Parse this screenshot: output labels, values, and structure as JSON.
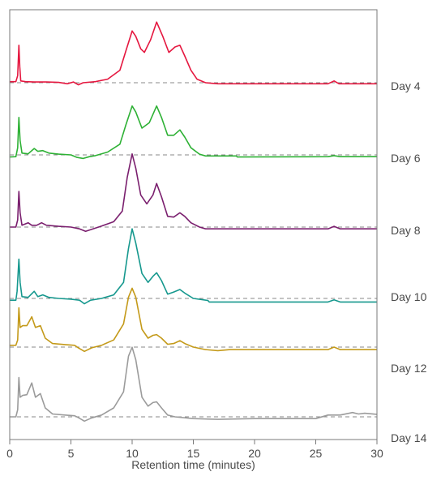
{
  "chart_data": {
    "type": "line",
    "title": "",
    "xlabel": "Retention time (minutes)",
    "ylabel": "",
    "xlim": [
      0,
      30
    ],
    "x_ticks": [
      0,
      5,
      10,
      15,
      20,
      25,
      30
    ],
    "x_tick_labels": [
      "0",
      "5",
      "10",
      "15",
      "20",
      "25",
      "30"
    ],
    "grid": false,
    "legend": "right (label beside each trace)",
    "baseline_reference": "dashed grey line per trace",
    "series": [
      {
        "name": "Day 4",
        "color": "#e5173f",
        "points": [
          [
            0,
            0.03
          ],
          [
            0.5,
            0.03
          ],
          [
            0.65,
            0.2
          ],
          [
            0.75,
            1.05
          ],
          [
            0.82,
            0.45
          ],
          [
            0.9,
            0.05
          ],
          [
            1.3,
            0.03
          ],
          [
            2,
            0.02
          ],
          [
            3,
            0.02
          ],
          [
            4,
            0.01
          ],
          [
            4.7,
            -0.03
          ],
          [
            5.2,
            0.02
          ],
          [
            5.6,
            -0.06
          ],
          [
            6,
            0.0
          ],
          [
            7,
            0.03
          ],
          [
            8,
            0.1
          ],
          [
            9,
            0.35
          ],
          [
            9.5,
            0.9
          ],
          [
            10,
            1.45
          ],
          [
            10.3,
            1.3
          ],
          [
            10.7,
            0.95
          ],
          [
            11,
            0.85
          ],
          [
            11.5,
            1.2
          ],
          [
            12,
            1.7
          ],
          [
            12.5,
            1.3
          ],
          [
            13,
            0.85
          ],
          [
            13.5,
            1.0
          ],
          [
            13.9,
            1.05
          ],
          [
            14.3,
            0.75
          ],
          [
            14.8,
            0.35
          ],
          [
            15.3,
            0.1
          ],
          [
            16,
            0.0
          ],
          [
            17,
            -0.03
          ],
          [
            20,
            -0.03
          ],
          [
            26,
            -0.03
          ],
          [
            26.5,
            0.05
          ],
          [
            26.9,
            -0.03
          ],
          [
            30,
            -0.03
          ]
        ]
      },
      {
        "name": "Day 6",
        "color": "#2eb135",
        "points": [
          [
            0,
            -0.06
          ],
          [
            0.5,
            -0.05
          ],
          [
            0.65,
            0.2
          ],
          [
            0.75,
            1.05
          ],
          [
            0.85,
            0.4
          ],
          [
            1,
            0.05
          ],
          [
            1.5,
            0.03
          ],
          [
            2,
            0.18
          ],
          [
            2.3,
            0.1
          ],
          [
            2.7,
            0.12
          ],
          [
            3.2,
            0.05
          ],
          [
            4,
            0.02
          ],
          [
            5,
            0.0
          ],
          [
            5.5,
            -0.07
          ],
          [
            6,
            -0.1
          ],
          [
            6.5,
            -0.05
          ],
          [
            7,
            -0.02
          ],
          [
            8,
            0.08
          ],
          [
            9,
            0.3
          ],
          [
            9.5,
            0.85
          ],
          [
            10,
            1.37
          ],
          [
            10.3,
            1.2
          ],
          [
            10.8,
            0.75
          ],
          [
            11.4,
            0.9
          ],
          [
            12,
            1.37
          ],
          [
            12.4,
            1.05
          ],
          [
            12.9,
            0.55
          ],
          [
            13.4,
            0.55
          ],
          [
            13.9,
            0.7
          ],
          [
            14.3,
            0.5
          ],
          [
            14.8,
            0.2
          ],
          [
            15.5,
            0.02
          ],
          [
            16,
            -0.03
          ],
          [
            18.5,
            -0.03
          ],
          [
            18.6,
            -0.06
          ],
          [
            26,
            -0.05
          ],
          [
            26.5,
            -0.02
          ],
          [
            27,
            -0.05
          ],
          [
            30,
            -0.05
          ]
        ]
      },
      {
        "name": "Day 8",
        "color": "#7a1f6e",
        "points": [
          [
            0,
            0.0
          ],
          [
            0.5,
            0.0
          ],
          [
            0.65,
            0.2
          ],
          [
            0.75,
            1.0
          ],
          [
            0.85,
            0.4
          ],
          [
            1,
            0.05
          ],
          [
            1.5,
            0.12
          ],
          [
            1.8,
            0.05
          ],
          [
            2.2,
            0.05
          ],
          [
            2.6,
            0.12
          ],
          [
            3,
            0.05
          ],
          [
            4,
            0.02
          ],
          [
            5,
            0.0
          ],
          [
            5.7,
            -0.05
          ],
          [
            6.2,
            -0.12
          ],
          [
            6.8,
            -0.05
          ],
          [
            7.5,
            0.03
          ],
          [
            8.5,
            0.15
          ],
          [
            9.2,
            0.45
          ],
          [
            9.6,
            1.4
          ],
          [
            10,
            2.05
          ],
          [
            10.3,
            1.65
          ],
          [
            10.7,
            0.9
          ],
          [
            11.2,
            0.65
          ],
          [
            11.7,
            0.9
          ],
          [
            12,
            1.22
          ],
          [
            12.4,
            0.85
          ],
          [
            12.9,
            0.3
          ],
          [
            13.4,
            0.28
          ],
          [
            13.9,
            0.4
          ],
          [
            14.3,
            0.3
          ],
          [
            14.8,
            0.12
          ],
          [
            15.5,
            0.0
          ],
          [
            16,
            -0.05
          ],
          [
            20,
            -0.05
          ],
          [
            26,
            -0.05
          ],
          [
            26.5,
            0.02
          ],
          [
            27,
            -0.05
          ],
          [
            30,
            -0.05
          ]
        ]
      },
      {
        "name": "Day 10",
        "color": "#16988e",
        "points": [
          [
            0,
            -0.05
          ],
          [
            0.5,
            -0.05
          ],
          [
            0.6,
            0.2
          ],
          [
            0.75,
            1.1
          ],
          [
            0.85,
            0.45
          ],
          [
            1,
            0.05
          ],
          [
            1.5,
            0.03
          ],
          [
            2,
            0.2
          ],
          [
            2.3,
            0.05
          ],
          [
            2.7,
            0.1
          ],
          [
            3.2,
            0.03
          ],
          [
            4,
            0.0
          ],
          [
            5,
            -0.02
          ],
          [
            5.7,
            -0.05
          ],
          [
            6.1,
            -0.15
          ],
          [
            6.6,
            -0.05
          ],
          [
            7.5,
            0.0
          ],
          [
            8.5,
            0.1
          ],
          [
            9.3,
            0.45
          ],
          [
            9.7,
            1.4
          ],
          [
            10,
            1.95
          ],
          [
            10.3,
            1.55
          ],
          [
            10.8,
            0.7
          ],
          [
            11.3,
            0.45
          ],
          [
            11.7,
            0.62
          ],
          [
            12,
            0.72
          ],
          [
            12.4,
            0.5
          ],
          [
            12.9,
            0.12
          ],
          [
            13.4,
            0.18
          ],
          [
            13.9,
            0.25
          ],
          [
            14.3,
            0.15
          ],
          [
            15,
            0.0
          ],
          [
            16.2,
            -0.06
          ],
          [
            16.3,
            -0.1
          ],
          [
            26,
            -0.1
          ],
          [
            26.5,
            -0.04
          ],
          [
            27,
            -0.1
          ],
          [
            30,
            -0.1
          ]
        ]
      },
      {
        "name": "Day 12",
        "color": "#c49a1a",
        "points": [
          [
            0,
            0.05
          ],
          [
            0.5,
            0.05
          ],
          [
            0.65,
            0.2
          ],
          [
            0.75,
            1.1
          ],
          [
            0.85,
            0.55
          ],
          [
            1.05,
            0.6
          ],
          [
            1.4,
            0.6
          ],
          [
            1.8,
            0.85
          ],
          [
            2.1,
            0.55
          ],
          [
            2.5,
            0.6
          ],
          [
            2.9,
            0.25
          ],
          [
            3.5,
            0.1
          ],
          [
            4.5,
            0.07
          ],
          [
            5.3,
            0.05
          ],
          [
            5.6,
            -0.02
          ],
          [
            6.1,
            -0.12
          ],
          [
            6.7,
            -0.02
          ],
          [
            7.5,
            0.05
          ],
          [
            8.5,
            0.2
          ],
          [
            9.3,
            0.65
          ],
          [
            9.7,
            1.4
          ],
          [
            10,
            1.65
          ],
          [
            10.3,
            1.4
          ],
          [
            10.8,
            0.5
          ],
          [
            11.3,
            0.25
          ],
          [
            11.7,
            0.33
          ],
          [
            12,
            0.35
          ],
          [
            12.4,
            0.25
          ],
          [
            12.9,
            0.08
          ],
          [
            13.4,
            0.1
          ],
          [
            13.9,
            0.18
          ],
          [
            14.3,
            0.1
          ],
          [
            15,
            0.0
          ],
          [
            16,
            -0.07
          ],
          [
            17,
            -0.1
          ],
          [
            18,
            -0.07
          ],
          [
            20,
            -0.07
          ],
          [
            26,
            -0.07
          ],
          [
            26.5,
            0.0
          ],
          [
            27,
            -0.07
          ],
          [
            30,
            -0.07
          ]
        ]
      },
      {
        "name": "Day 14",
        "color": "#9b9b9b",
        "points": [
          [
            0,
            0.0
          ],
          [
            0.5,
            0.0
          ],
          [
            0.65,
            0.2
          ],
          [
            0.75,
            1.1
          ],
          [
            0.85,
            0.55
          ],
          [
            1.05,
            0.6
          ],
          [
            1.4,
            0.62
          ],
          [
            1.8,
            0.95
          ],
          [
            2.1,
            0.55
          ],
          [
            2.5,
            0.65
          ],
          [
            2.9,
            0.25
          ],
          [
            3.5,
            0.08
          ],
          [
            4.5,
            0.05
          ],
          [
            5.3,
            0.03
          ],
          [
            5.6,
            -0.02
          ],
          [
            6.1,
            -0.12
          ],
          [
            6.7,
            -0.03
          ],
          [
            7.5,
            0.05
          ],
          [
            8.5,
            0.25
          ],
          [
            9.3,
            0.7
          ],
          [
            9.7,
            1.7
          ],
          [
            10,
            1.95
          ],
          [
            10.3,
            1.6
          ],
          [
            10.8,
            0.55
          ],
          [
            11.3,
            0.3
          ],
          [
            11.7,
            0.4
          ],
          [
            12,
            0.42
          ],
          [
            12.4,
            0.25
          ],
          [
            12.9,
            0.05
          ],
          [
            13.5,
            0.0
          ],
          [
            15,
            -0.05
          ],
          [
            17,
            -0.07
          ],
          [
            20,
            -0.05
          ],
          [
            25,
            -0.05
          ],
          [
            26,
            0.05
          ],
          [
            27,
            0.05
          ],
          [
            28,
            0.12
          ],
          [
            28.5,
            0.08
          ],
          [
            29,
            0.1
          ],
          [
            30,
            0.07
          ]
        ]
      }
    ]
  },
  "colors": {
    "axis": "#7a7a7a",
    "baseline": "#8a8a8a",
    "text": "#4a4a4a"
  }
}
